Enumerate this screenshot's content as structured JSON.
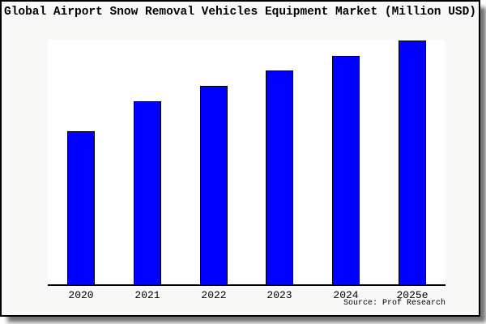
{
  "chart_data": {
    "type": "bar",
    "title": "Global Airport Snow Removal Vehicles Equipment Market (Million USD)",
    "categories": [
      "2020",
      "2021",
      "2022",
      "2023",
      "2024",
      "2025e"
    ],
    "values": [
      189,
      226,
      245,
      264,
      282,
      301
    ],
    "ylim": [
      0,
      302
    ],
    "xlabel": "",
    "ylabel": "",
    "grid": false,
    "legend_position": "none",
    "y_axis_visible": false,
    "x_axis_visible": true,
    "bar_color": "#0000ff",
    "bar_border_color": "#000000",
    "plot_background": "#ffffff",
    "figure_background": "#f8f8f6",
    "source": "Source: Prof Research"
  }
}
